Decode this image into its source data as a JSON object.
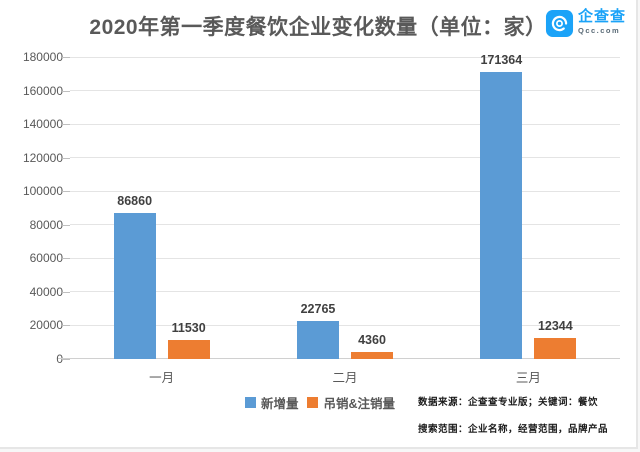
{
  "header": {
    "title": "2020年第一季度餐饮企业变化数量（单位：家）",
    "logo": {
      "name": "企查查",
      "domain": "Qcc.com",
      "brand_color": "#1BA3F8"
    }
  },
  "chart_data": {
    "type": "bar",
    "title": "2020年第一季度餐饮企业变化数量（单位：家）",
    "categories": [
      "一月",
      "二月",
      "三月"
    ],
    "series": [
      {
        "name": "新增量",
        "color": "#5B9BD5",
        "values": [
          86860,
          22765,
          171364
        ]
      },
      {
        "name": "吊销&注销量",
        "color": "#ED7D31",
        "values": [
          11530,
          4360,
          12344
        ]
      }
    ],
    "ylim": [
      0,
      180000
    ],
    "ytick_step": 20000,
    "grid": true,
    "legend_position": "bottom"
  },
  "footnote": {
    "line1": "数据来源：企查查专业版；关键词：餐饮",
    "line2": "搜索范围：企业名称，经营范围，品牌产品"
  }
}
